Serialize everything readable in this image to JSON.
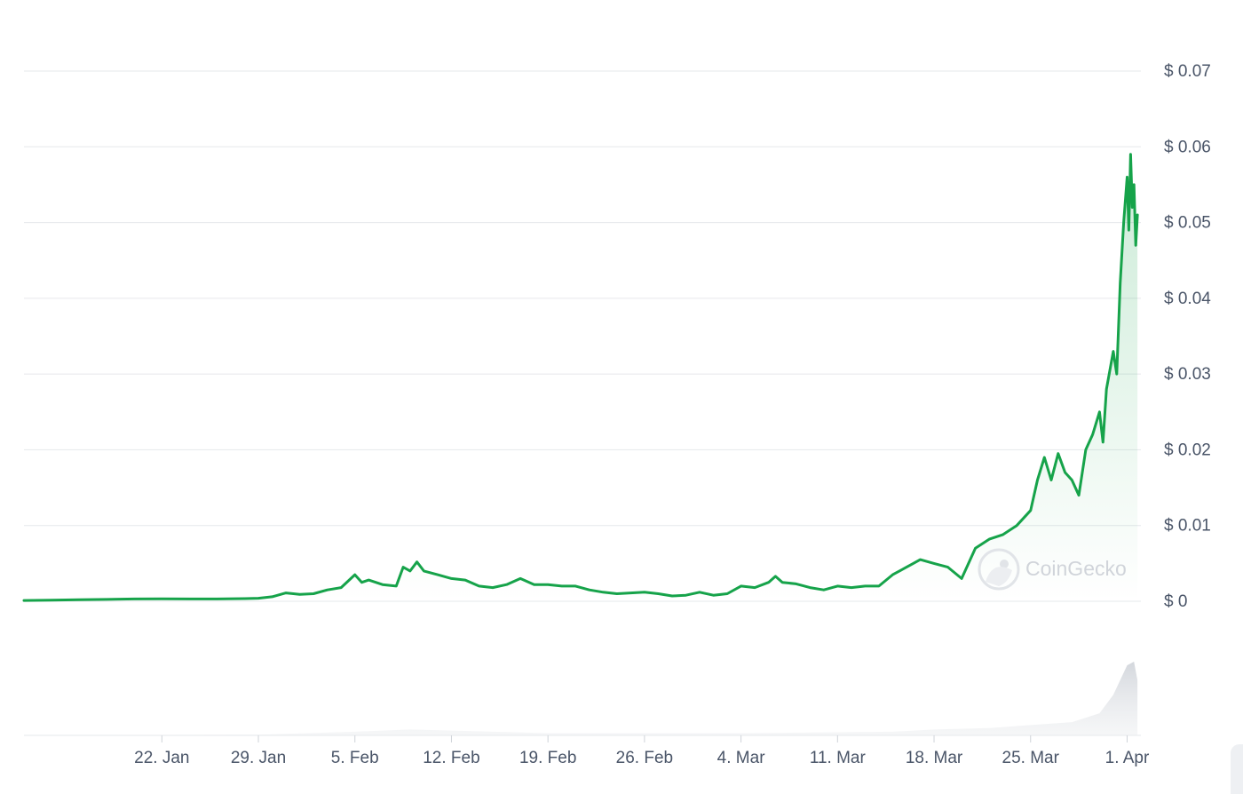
{
  "chart_data": {
    "type": "area",
    "x_axis": "date",
    "ylim": [
      0,
      0.07
    ],
    "y_ticks": [
      {
        "value": 0.07,
        "label": "$ 0.07"
      },
      {
        "value": 0.06,
        "label": "$ 0.06"
      },
      {
        "value": 0.05,
        "label": "$ 0.05"
      },
      {
        "value": 0.04,
        "label": "$ 0.04"
      },
      {
        "value": 0.03,
        "label": "$ 0.03"
      },
      {
        "value": 0.02,
        "label": "$ 0.02"
      },
      {
        "value": 0.01,
        "label": "$ 0.01"
      },
      {
        "value": 0,
        "label": "$ 0"
      }
    ],
    "xlim": [
      "2024-01-12",
      "2024-04-02"
    ],
    "x_ticks": [
      {
        "date": "2024-01-22",
        "label": "22. Jan"
      },
      {
        "date": "2024-01-29",
        "label": "29. Jan"
      },
      {
        "date": "2024-02-05",
        "label": "5. Feb"
      },
      {
        "date": "2024-02-12",
        "label": "12. Feb"
      },
      {
        "date": "2024-02-19",
        "label": "19. Feb"
      },
      {
        "date": "2024-02-26",
        "label": "26. Feb"
      },
      {
        "date": "2024-03-04",
        "label": "4. Mar"
      },
      {
        "date": "2024-03-11",
        "label": "11. Mar"
      },
      {
        "date": "2024-03-18",
        "label": "18. Mar"
      },
      {
        "date": "2024-03-25",
        "label": "25. Mar"
      },
      {
        "date": "2024-04-01",
        "label": "1. Apr"
      }
    ],
    "grid": true,
    "line_color": "#16a34a",
    "fill_color": "#16a34a",
    "watermark": "CoinGecko",
    "series": [
      {
        "points": [
          [
            "2024-01-12",
            0.0001
          ],
          [
            "2024-01-14",
            0.00015
          ],
          [
            "2024-01-16",
            0.0002
          ],
          [
            "2024-01-18",
            0.00025
          ],
          [
            "2024-01-20",
            0.0003
          ],
          [
            "2024-01-22",
            0.00032
          ],
          [
            "2024-01-24",
            0.0003
          ],
          [
            "2024-01-26",
            0.0003
          ],
          [
            "2024-01-28",
            0.00035
          ],
          [
            "2024-01-29",
            0.0004
          ],
          [
            "2024-01-30",
            0.0006
          ],
          [
            "2024-01-31",
            0.0011
          ],
          [
            "2024-02-01",
            0.0009
          ],
          [
            "2024-02-02",
            0.001
          ],
          [
            "2024-02-03",
            0.0015
          ],
          [
            "2024-02-04",
            0.0018
          ],
          [
            "2024-02-05",
            0.0035
          ],
          [
            "2024-02-05T12:00",
            0.0025
          ],
          [
            "2024-02-06",
            0.0028
          ],
          [
            "2024-02-07",
            0.0022
          ],
          [
            "2024-02-08",
            0.002
          ],
          [
            "2024-02-08T12:00",
            0.0045
          ],
          [
            "2024-02-09",
            0.004
          ],
          [
            "2024-02-09T12:00",
            0.0052
          ],
          [
            "2024-02-10",
            0.004
          ],
          [
            "2024-02-11",
            0.0035
          ],
          [
            "2024-02-12",
            0.003
          ],
          [
            "2024-02-13",
            0.0028
          ],
          [
            "2024-02-14",
            0.002
          ],
          [
            "2024-02-15",
            0.0018
          ],
          [
            "2024-02-16",
            0.0022
          ],
          [
            "2024-02-17",
            0.003
          ],
          [
            "2024-02-18",
            0.0022
          ],
          [
            "2024-02-19",
            0.0022
          ],
          [
            "2024-02-20",
            0.002
          ],
          [
            "2024-02-21",
            0.002
          ],
          [
            "2024-02-22",
            0.0015
          ],
          [
            "2024-02-23",
            0.0012
          ],
          [
            "2024-02-24",
            0.001
          ],
          [
            "2024-02-25",
            0.0011
          ],
          [
            "2024-02-26",
            0.0012
          ],
          [
            "2024-02-27",
            0.001
          ],
          [
            "2024-02-28",
            0.0007
          ],
          [
            "2024-02-29",
            0.0008
          ],
          [
            "2024-03-01",
            0.0012
          ],
          [
            "2024-03-02",
            0.0008
          ],
          [
            "2024-03-03",
            0.001
          ],
          [
            "2024-03-04",
            0.002
          ],
          [
            "2024-03-05",
            0.0018
          ],
          [
            "2024-03-06",
            0.0025
          ],
          [
            "2024-03-06T12:00",
            0.0033
          ],
          [
            "2024-03-07",
            0.0025
          ],
          [
            "2024-03-08",
            0.0023
          ],
          [
            "2024-03-09",
            0.0018
          ],
          [
            "2024-03-10",
            0.0015
          ],
          [
            "2024-03-11",
            0.002
          ],
          [
            "2024-03-12",
            0.0018
          ],
          [
            "2024-03-13",
            0.002
          ],
          [
            "2024-03-14",
            0.002
          ],
          [
            "2024-03-15",
            0.0035
          ],
          [
            "2024-03-16",
            0.0045
          ],
          [
            "2024-03-17",
            0.0055
          ],
          [
            "2024-03-18",
            0.005
          ],
          [
            "2024-03-19",
            0.0045
          ],
          [
            "2024-03-20",
            0.003
          ],
          [
            "2024-03-21",
            0.007
          ],
          [
            "2024-03-22",
            0.0082
          ],
          [
            "2024-03-23",
            0.0088
          ],
          [
            "2024-03-24",
            0.01
          ],
          [
            "2024-03-25",
            0.012
          ],
          [
            "2024-03-25T12:00",
            0.016
          ],
          [
            "2024-03-26",
            0.019
          ],
          [
            "2024-03-26T12:00",
            0.016
          ],
          [
            "2024-03-27",
            0.0195
          ],
          [
            "2024-03-27T12:00",
            0.017
          ],
          [
            "2024-03-28",
            0.016
          ],
          [
            "2024-03-28T12:00",
            0.014
          ],
          [
            "2024-03-29",
            0.02
          ],
          [
            "2024-03-29T12:00",
            0.022
          ],
          [
            "2024-03-30",
            0.025
          ],
          [
            "2024-03-30T06:00",
            0.021
          ],
          [
            "2024-03-30T12:00",
            0.028
          ],
          [
            "2024-03-31",
            0.033
          ],
          [
            "2024-03-31T06:00",
            0.03
          ],
          [
            "2024-03-31T12:00",
            0.042
          ],
          [
            "2024-03-31T18:00",
            0.05
          ],
          [
            "2024-04-01",
            0.056
          ],
          [
            "2024-04-01T03:00",
            0.049
          ],
          [
            "2024-04-01T06:00",
            0.059
          ],
          [
            "2024-04-01T09:00",
            0.052
          ],
          [
            "2024-04-01T12:00",
            0.055
          ],
          [
            "2024-04-01T15:00",
            0.047
          ],
          [
            "2024-04-01T18:00",
            0.051
          ]
        ]
      }
    ],
    "volume": {
      "points": [
        [
          "2024-01-12",
          0.0
        ],
        [
          "2024-01-29",
          0.01
        ],
        [
          "2024-02-05",
          0.05
        ],
        [
          "2024-02-09",
          0.08
        ],
        [
          "2024-02-19",
          0.03
        ],
        [
          "2024-03-04",
          0.03
        ],
        [
          "2024-03-15",
          0.05
        ],
        [
          "2024-03-18",
          0.08
        ],
        [
          "2024-03-22",
          0.1
        ],
        [
          "2024-03-25",
          0.14
        ],
        [
          "2024-03-28",
          0.18
        ],
        [
          "2024-03-30",
          0.3
        ],
        [
          "2024-03-31",
          0.55
        ],
        [
          "2024-04-01",
          0.95
        ],
        [
          "2024-04-01T12:00",
          1.0
        ],
        [
          "2024-04-01T18:00",
          0.75
        ]
      ]
    }
  }
}
